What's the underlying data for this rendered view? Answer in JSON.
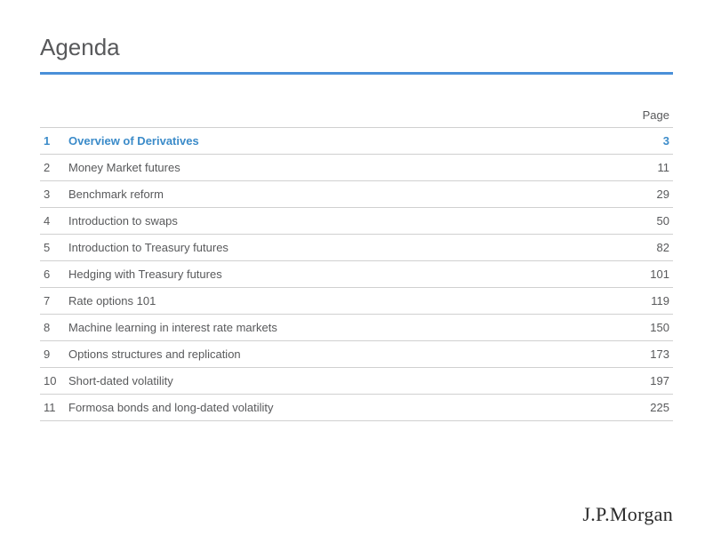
{
  "header": {
    "title": "Agenda",
    "page_label": "Page",
    "underline_color": "#4a90d9",
    "title_color": "#58595b",
    "title_fontsize": 26
  },
  "agenda": {
    "text_color": "#58595b",
    "highlight_color": "#3b8bc9",
    "border_color": "#d0d0d0",
    "fontsize": 13,
    "items": [
      {
        "num": "1",
        "title": "Overview of Derivatives",
        "page": "3",
        "highlighted": true
      },
      {
        "num": "2",
        "title": "Money Market futures",
        "page": "11",
        "highlighted": false
      },
      {
        "num": "3",
        "title": "Benchmark reform",
        "page": "29",
        "highlighted": false
      },
      {
        "num": "4",
        "title": "Introduction to swaps",
        "page": "50",
        "highlighted": false
      },
      {
        "num": "5",
        "title": "Introduction to Treasury futures",
        "page": "82",
        "highlighted": false
      },
      {
        "num": "6",
        "title": "Hedging with Treasury futures",
        "page": "101",
        "highlighted": false
      },
      {
        "num": "7",
        "title": "Rate options 101",
        "page": "119",
        "highlighted": false
      },
      {
        "num": "8",
        "title": "Machine learning in interest rate markets",
        "page": "150",
        "highlighted": false
      },
      {
        "num": "9",
        "title": "Options structures and replication",
        "page": "173",
        "highlighted": false
      },
      {
        "num": "10",
        "title": "Short-dated volatility",
        "page": "197",
        "highlighted": false
      },
      {
        "num": "11",
        "title": "Formosa bonds and long-dated volatility",
        "page": "225",
        "highlighted": false
      }
    ]
  },
  "logo": {
    "text": "J.P.Morgan",
    "color": "#2a2a2a",
    "fontsize": 22
  }
}
